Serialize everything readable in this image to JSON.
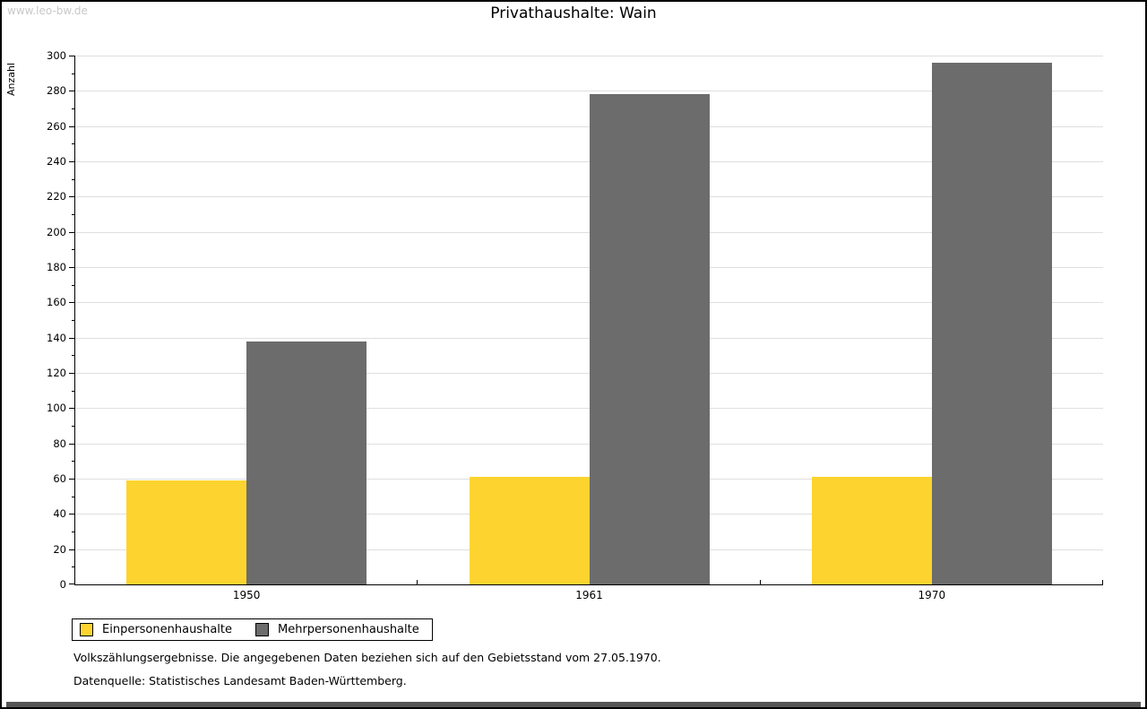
{
  "watermark": "www.leo-bw.de",
  "title": "Privathaushalte: Wain",
  "chart_data": {
    "type": "bar",
    "title": "Privathaushalte: Wain",
    "categories": [
      "1950",
      "1961",
      "1970"
    ],
    "series": [
      {
        "name": "Einpersonenhaushalte",
        "color": "#FDD42F",
        "values": [
          59,
          61,
          61
        ]
      },
      {
        "name": "Mehrpersonenhaushalte",
        "color": "#6C6C6C",
        "values": [
          138,
          278,
          296
        ]
      }
    ],
    "xlabel": "",
    "ylabel": "Anzahl",
    "ylim": [
      0,
      300
    ],
    "ytick_step": 20,
    "yminor_step": 10,
    "grid": true,
    "legend_position": "bottom-left"
  },
  "footnotes": [
    "Volkszählungsergebnisse. Die angegebenen Daten beziehen sich auf den Gebietsstand vom 27.05.1970.",
    "Datenquelle: Statistisches Landesamt Baden-Württemberg."
  ],
  "colors": {
    "grid": "#DFDFDF",
    "axis": "#000000",
    "watermark": "#C8C8C8",
    "bottom_bar": "#555555"
  }
}
